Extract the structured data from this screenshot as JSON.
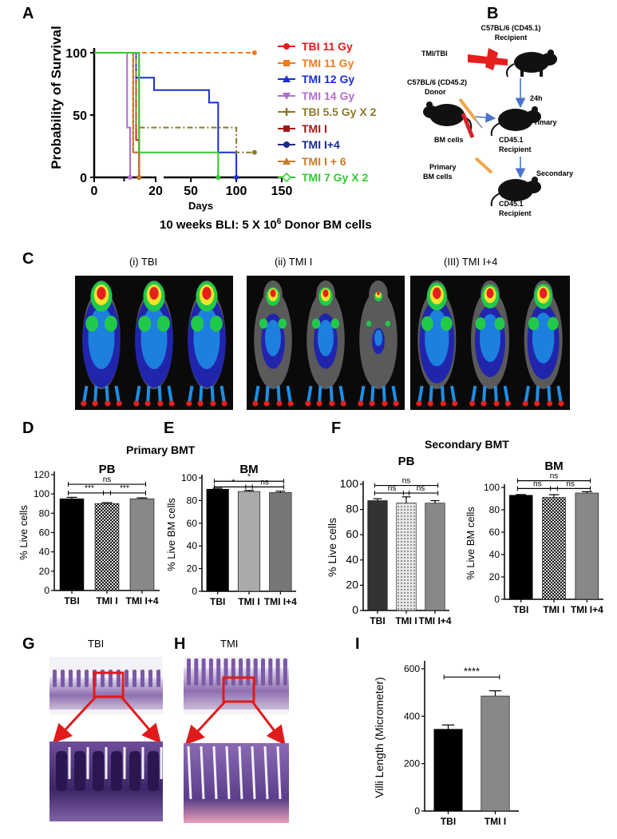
{
  "panels": {
    "A": "A",
    "B": "B",
    "C": "C",
    "D": "D",
    "E": "E",
    "F": "F",
    "G": "G",
    "H": "H",
    "I": "I"
  },
  "panelA": {
    "ylabel": "Probability of Survival",
    "xlabel": "Days",
    "yticks": [
      "0",
      "50",
      "100"
    ],
    "xticks": [
      "0",
      "10",
      "20",
      "50",
      "100",
      "150"
    ],
    "legend": [
      {
        "label": "TBI 11 Gy",
        "color": "#e8191a",
        "marker": "circle"
      },
      {
        "label": "TMI 11 Gy",
        "color": "#f47a1f",
        "marker": "square"
      },
      {
        "label": "TMI 12 Gy",
        "color": "#1a2ed6",
        "marker": "triangle"
      },
      {
        "label": "TMI 14 Gy",
        "color": "#b06fc8",
        "marker": "triangle-down"
      },
      {
        "label": "TBI 5.5 Gy X 2",
        "color": "#8b7a2a",
        "marker": "plus"
      },
      {
        "label": "TMI I",
        "color": "#a5161a",
        "marker": "square"
      },
      {
        "label": "TMI I+4",
        "color": "#1b2a8c",
        "marker": "circle"
      },
      {
        "label": "TMI I + 6",
        "color": "#c77a2a",
        "marker": "triangle"
      },
      {
        "label": "TMI 7 Gy X 2",
        "color": "#2ecc2e",
        "marker": "diamond"
      }
    ]
  },
  "panelB": {
    "recipient_top": [
      "C57BL/6 (CD45.1)",
      "Recipient"
    ],
    "tmi_tbi": "TMI/TBI",
    "donor": [
      "C57BL/6 (CD45.2)",
      "Donor"
    ],
    "time": "24h",
    "primary": "Primary",
    "bm_cells": "BM cells",
    "recipient_mid": [
      "CD45.1",
      "Recipient"
    ],
    "primary_bm": [
      "Primary",
      "BM cells"
    ],
    "secondary": "Secondary",
    "recipient_bottom": [
      "CD45.1",
      "Recipient"
    ]
  },
  "caption_bli": {
    "prefix": "10 weeks BLI: 5 X 10",
    "exp": "6",
    "suffix": " Donor BM cells"
  },
  "panelC": {
    "labels": [
      "(i) TBI",
      "(ii) TMI I",
      "(III) TMI I+4"
    ]
  },
  "primary_title": "Primary BMT",
  "secondary_title": "Secondary BMT",
  "chart_data": [
    {
      "type": "line",
      "id": "A",
      "xlabel": "Days",
      "ylabel": "Probability of Survival",
      "ylim": [
        0,
        100
      ],
      "series": [
        {
          "name": "TBI 11 Gy",
          "x": [
            0,
            13,
            14,
            15
          ],
          "y": [
            100,
            100,
            30,
            0
          ]
        },
        {
          "name": "TMI 11 Gy",
          "x": [
            0,
            120
          ],
          "y": [
            100,
            100
          ]
        },
        {
          "name": "TMI 12 Gy",
          "x": [
            0,
            12,
            14,
            20,
            70,
            80,
            100
          ],
          "y": [
            100,
            100,
            80,
            70,
            60,
            20,
            0
          ]
        },
        {
          "name": "TMI 14 Gy",
          "x": [
            0,
            10,
            11,
            12
          ],
          "y": [
            100,
            100,
            40,
            0
          ]
        },
        {
          "name": "TBI 5.5 Gy X 2",
          "x": [
            0,
            11,
            14,
            100,
            120
          ],
          "y": [
            100,
            100,
            40,
            20,
            20
          ]
        },
        {
          "name": "TMI I",
          "x": [
            0,
            14,
            15
          ],
          "y": [
            100,
            100,
            0
          ]
        },
        {
          "name": "TMI I+4",
          "x": [
            0,
            12,
            13,
            15
          ],
          "y": [
            100,
            100,
            20,
            0
          ]
        },
        {
          "name": "TMI I + 6",
          "x": [
            0,
            12,
            13,
            15
          ],
          "y": [
            100,
            100,
            20,
            0
          ]
        },
        {
          "name": "TMI 7 Gy X 2",
          "x": [
            0,
            14,
            15,
            80
          ],
          "y": [
            100,
            100,
            20,
            0
          ]
        }
      ]
    },
    {
      "type": "bar",
      "id": "D",
      "title": "PB",
      "ylabel": "% Live cells",
      "categories": [
        "TBI",
        "TMI I",
        "TMI I+4"
      ],
      "values": [
        95,
        90,
        95
      ],
      "errors": [
        1.5,
        1,
        1
      ],
      "ylim": [
        0,
        120
      ],
      "yticks": [
        0,
        20,
        40,
        60,
        80,
        100,
        120
      ],
      "fills": [
        "black",
        "check",
        "#888888"
      ],
      "sig": [
        {
          "a": 0,
          "b": 2,
          "label": "ns",
          "y": 110
        },
        {
          "a": 0,
          "b": 1,
          "label": "***",
          "y": 101
        },
        {
          "a": 1,
          "b": 2,
          "label": "***",
          "y": 101
        }
      ]
    },
    {
      "type": "bar",
      "id": "E",
      "title": "BM",
      "ylabel": "% Live BM cells",
      "categories": [
        "TBI",
        "TMI I",
        "TMI I+4"
      ],
      "values": [
        90,
        88,
        87
      ],
      "errors": [
        0.8,
        0.8,
        1.2
      ],
      "ylim": [
        0,
        100
      ],
      "yticks": [
        0,
        20,
        40,
        60,
        80,
        100
      ],
      "fills": [
        "black",
        "#aaaaaa",
        "#777777"
      ],
      "sig": [
        {
          "a": 0,
          "b": 2,
          "label": "*",
          "y": 97
        },
        {
          "a": 0,
          "b": 1,
          "label": "*",
          "y": 92
        },
        {
          "a": 1,
          "b": 2,
          "label": "ns",
          "y": 92
        }
      ]
    },
    {
      "type": "bar",
      "id": "F1",
      "title": "PB",
      "ylabel": "% Live cells",
      "categories": [
        "TBI",
        "TMI I",
        "TMI I+4"
      ],
      "values": [
        87,
        85,
        85
      ],
      "errors": [
        1.5,
        5,
        2
      ],
      "ylim": [
        0,
        100
      ],
      "yticks": [
        0,
        20,
        40,
        60,
        80,
        100
      ],
      "fills": [
        "#333333",
        "dots",
        "#888888"
      ],
      "sig": [
        {
          "a": 0,
          "b": 2,
          "label": "ns",
          "y": 99
        },
        {
          "a": 0,
          "b": 1,
          "label": "ns",
          "y": 93
        },
        {
          "a": 1,
          "b": 2,
          "label": "ns",
          "y": 93
        }
      ]
    },
    {
      "type": "bar",
      "id": "F2",
      "title": "BM",
      "ylabel": "% Live BM cells",
      "categories": [
        "TBI",
        "TMI I",
        "TMI I+4"
      ],
      "values": [
        93,
        91,
        95
      ],
      "errors": [
        0.6,
        2.5,
        1.2
      ],
      "ylim": [
        0,
        100
      ],
      "yticks": [
        0,
        20,
        40,
        60,
        80,
        100
      ],
      "fills": [
        "black",
        "check",
        "#888888"
      ],
      "sig": [
        {
          "a": 0,
          "b": 2,
          "label": "ns",
          "y": 106
        },
        {
          "a": 0,
          "b": 1,
          "label": "ns",
          "y": 99
        },
        {
          "a": 1,
          "b": 2,
          "label": "ns",
          "y": 99
        }
      ]
    },
    {
      "type": "bar",
      "id": "I",
      "ylabel": "Villi Length (Micrometer)",
      "categories": [
        "TBI",
        "TMI I"
      ],
      "values": [
        345,
        485
      ],
      "errors": [
        18,
        22
      ],
      "ylim": [
        0,
        620
      ],
      "yticks": [
        0,
        200,
        400,
        600
      ],
      "fills": [
        "black",
        "#888888"
      ],
      "sig": [
        {
          "a": 0,
          "b": 1,
          "label": "****",
          "y": 565
        }
      ]
    }
  ],
  "panelG": {
    "label": "TBI"
  },
  "panelH": {
    "label": "TMI"
  }
}
